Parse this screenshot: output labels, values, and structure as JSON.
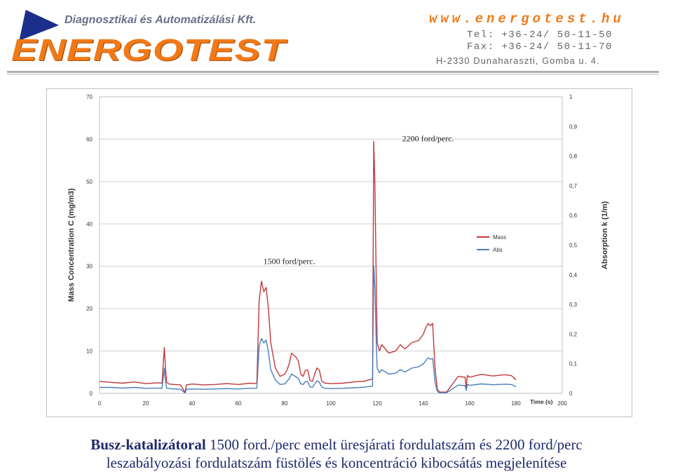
{
  "header": {
    "company": "Diagnosztikai és Automatizálási Kft.",
    "brand": "ENERGOTEST",
    "website": "www.energotest.hu",
    "tel": "Tel:  +36-24/ 50-11-50",
    "fax": "Fax: +36-24/ 50-11-70",
    "address": "H-2330 Dunaharaszti, Gomba u. 4.",
    "colors": {
      "brand_orange": "#f07a18",
      "logo_blue": "#1a2f8c"
    }
  },
  "chart_data": {
    "type": "line",
    "xlabel": "Time (s)",
    "ylabel_left": "Mass Concentration C (mg/m3)",
    "ylabel_right": "Absorption k (1/m)",
    "xlim": [
      0,
      200
    ],
    "ylim_left": [
      0,
      70
    ],
    "ylim_right": [
      0,
      1
    ],
    "x_ticks": [
      0,
      20,
      40,
      60,
      80,
      100,
      120,
      140,
      160,
      180,
      200
    ],
    "y_ticks_left": [
      "0",
      "10",
      "20",
      "30",
      "40",
      "50",
      "60",
      "70"
    ],
    "y_ticks_right": [
      "0",
      "0,1",
      "0,2",
      "0,3",
      "0,4",
      "0,5",
      "0,6",
      "0,7",
      "0,8",
      "0,9",
      "1"
    ],
    "grid": true,
    "legend_position": "right",
    "annotations": [
      {
        "text": "1500 ford/perc.",
        "x": 82,
        "y": 30.5
      },
      {
        "text": "2200 ford/perc.",
        "x": 142,
        "y": 59.5
      }
    ],
    "series": [
      {
        "name": "Mass",
        "axis": "left",
        "color": "#c0393b",
        "x": [
          0,
          5,
          10,
          15,
          20,
          25,
          27,
          28,
          28.5,
          29,
          30,
          32,
          35,
          37,
          37.5,
          40,
          45,
          50,
          55,
          60,
          65,
          67,
          68,
          69,
          70,
          71,
          72,
          73,
          74,
          76,
          78,
          80,
          81,
          82,
          83,
          84,
          85,
          86,
          87,
          88,
          89,
          90,
          91,
          92,
          93,
          94,
          95,
          96,
          97,
          98,
          100,
          105,
          110,
          115,
          116,
          117,
          118,
          118.5,
          119,
          119.5,
          120,
          121,
          122,
          125,
          128,
          130,
          132,
          135,
          138,
          140,
          141,
          142,
          143,
          144,
          145,
          146,
          147,
          150,
          155,
          158,
          158.5,
          159,
          160,
          165,
          170,
          175,
          178,
          180
        ],
        "y": [
          2.8,
          2.6,
          2.4,
          2.7,
          2.3,
          2.5,
          2.4,
          10.8,
          6,
          2.6,
          2.2,
          2.1,
          2.0,
          0.2,
          2.0,
          2.2,
          2.0,
          2.1,
          2.3,
          2.1,
          2.4,
          2.3,
          2.5,
          22,
          26.5,
          24,
          25,
          20,
          12,
          6,
          4,
          4.5,
          5.5,
          7,
          9.5,
          9,
          8.5,
          7.5,
          4.5,
          4,
          5.5,
          5.5,
          3,
          2.8,
          4.5,
          6,
          5.5,
          3,
          2.5,
          2.4,
          2.3,
          2.4,
          2.7,
          2.9,
          3.2,
          3.2,
          3.5,
          59.5,
          50,
          30,
          12,
          10,
          11.5,
          9.5,
          10,
          11.5,
          10.5,
          12,
          12.5,
          14,
          15.5,
          16.5,
          16,
          16.5,
          6,
          1,
          0.3,
          0.3,
          4,
          3.8,
          1.5,
          4.2,
          3.8,
          4.5,
          4.1,
          4.4,
          4.2,
          3.2
        ]
      },
      {
        "name": "Abs",
        "axis": "right",
        "color": "#4a7ebb",
        "x": [
          0,
          5,
          10,
          15,
          20,
          25,
          27,
          28,
          28.5,
          29,
          30,
          32,
          35,
          37,
          37.5,
          40,
          45,
          50,
          55,
          60,
          65,
          67,
          68,
          69,
          70,
          71,
          72,
          73,
          74,
          76,
          78,
          80,
          81,
          82,
          83,
          84,
          85,
          86,
          87,
          88,
          89,
          90,
          91,
          92,
          93,
          94,
          95,
          96,
          97,
          98,
          100,
          105,
          110,
          115,
          116,
          117,
          118,
          118.5,
          119,
          119.5,
          120,
          121,
          122,
          125,
          128,
          130,
          132,
          135,
          138,
          140,
          141,
          142,
          143,
          144,
          145,
          146,
          147,
          150,
          155,
          158,
          158.5,
          159,
          160,
          165,
          170,
          175,
          178,
          180
        ],
        "y": [
          0.02,
          0.02,
          0.018,
          0.02,
          0.017,
          0.018,
          0.017,
          0.085,
          0.04,
          0.018,
          0.016,
          0.015,
          0.014,
          0.001,
          0.014,
          0.015,
          0.014,
          0.015,
          0.016,
          0.015,
          0.017,
          0.017,
          0.018,
          0.16,
          0.185,
          0.17,
          0.18,
          0.14,
          0.08,
          0.045,
          0.03,
          0.032,
          0.04,
          0.05,
          0.065,
          0.06,
          0.055,
          0.05,
          0.032,
          0.03,
          0.04,
          0.04,
          0.022,
          0.02,
          0.032,
          0.042,
          0.038,
          0.022,
          0.018,
          0.017,
          0.016,
          0.017,
          0.019,
          0.021,
          0.023,
          0.023,
          0.025,
          0.43,
          0.36,
          0.2,
          0.085,
          0.07,
          0.08,
          0.065,
          0.068,
          0.08,
          0.072,
          0.085,
          0.09,
          0.1,
          0.11,
          0.12,
          0.115,
          0.118,
          0.04,
          0.006,
          0.002,
          0.002,
          0.028,
          0.026,
          0.01,
          0.03,
          0.027,
          0.032,
          0.029,
          0.031,
          0.03,
          0.022
        ]
      }
    ]
  },
  "caption": {
    "bold": "Busz-katalizátoral",
    "line1": " 1500 ford./perc emelt üresjárati fordulatszám és 2200 ford/perc",
    "line2": "leszabályozási fordulatszám füstölés és koncentráció kibocsátás megjelenítése"
  }
}
